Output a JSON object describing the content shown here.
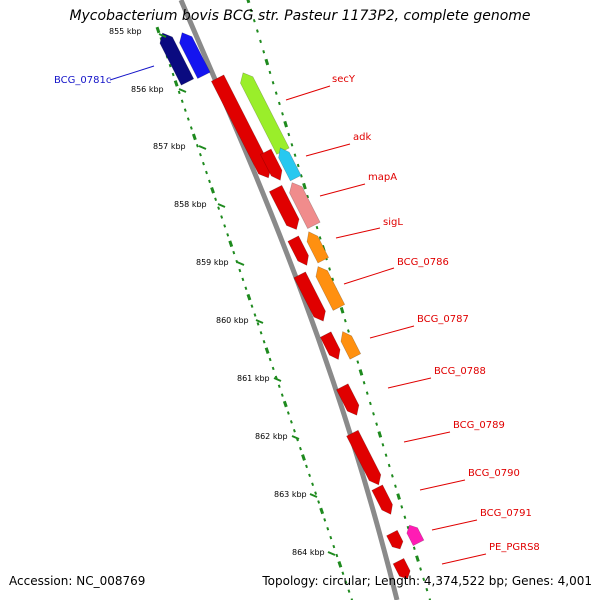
{
  "title": "Mycobacterium bovis BCG str. Pasteur 1173P2, complete genome",
  "footer": {
    "accession": "Accession: NC_008769",
    "stats": "Topology: circular; Length: 4,374,522 bp; Genes: 4,001"
  },
  "colors": {
    "backbone": "#8a8a8a",
    "ticks": "#1e8a1e",
    "reverse_strand_gene": "#e00000",
    "forward_strand_blue_dark": "#0a0a80",
    "forward_strand_blue": "#1414f0",
    "secY": "#9aee2a",
    "adk": "#28c8f0",
    "mapA": "#f08c8c",
    "orange": "#ff9010",
    "pink": "#ff1cb4",
    "gene_label_red": "#e00000",
    "gene_label_blue": "#1414c8"
  },
  "position_scale": {
    "unit": "kbp",
    "tick_labels": [
      "855 kbp",
      "856 kbp",
      "857 kbp",
      "858 kbp",
      "859 kbp",
      "860 kbp",
      "861 kbp",
      "862 kbp",
      "863 kbp",
      "864 kbp"
    ]
  },
  "gene_labels": [
    {
      "text": "BCG_0781c",
      "strand": "left"
    },
    {
      "text": "secY",
      "strand": "right"
    },
    {
      "text": "adk",
      "strand": "right"
    },
    {
      "text": "mapA",
      "strand": "right"
    },
    {
      "text": "sigL",
      "strand": "right"
    },
    {
      "text": "BCG_0786",
      "strand": "right"
    },
    {
      "text": "BCG_0787",
      "strand": "right"
    },
    {
      "text": "BCG_0788",
      "strand": "right"
    },
    {
      "text": "BCG_0789",
      "strand": "right"
    },
    {
      "text": "BCG_0790",
      "strand": "right"
    },
    {
      "text": "BCG_0791",
      "strand": "right"
    },
    {
      "text": "PE_PGRS8",
      "strand": "right"
    }
  ]
}
